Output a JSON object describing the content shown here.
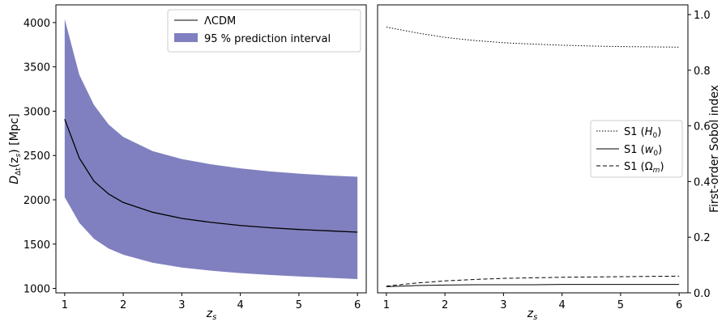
{
  "chart_data": [
    {
      "type": "area",
      "xlabel_main": "z",
      "xlabel_sub": "s",
      "ylabel_pre": "D",
      "ylabel_sub": "Δt",
      "ylabel_paren_pre": "(z",
      "ylabel_paren_sub": "s",
      "ylabel_post": ") [Mpc]",
      "xlim": [
        0.85,
        6.15
      ],
      "ylim": [
        950,
        4200
      ],
      "xticks": [
        "1",
        "2",
        "3",
        "4",
        "5",
        "6"
      ],
      "yticks": [
        "1000",
        "1500",
        "2000",
        "2500",
        "3000",
        "3500",
        "4000"
      ],
      "legend_position": "upper right",
      "legend": [
        {
          "label": "ΛCDM",
          "style": "line"
        },
        {
          "label": "95 % prediction interval",
          "style": "patch"
        }
      ],
      "colors": {
        "band": "#8080c0",
        "line": "#000000"
      },
      "x": [
        1.0,
        1.25,
        1.5,
        1.75,
        2.0,
        2.5,
        3.0,
        3.5,
        4.0,
        4.5,
        5.0,
        5.5,
        6.0
      ],
      "series": [
        {
          "name": "ΛCDM",
          "values": [
            2910,
            2470,
            2210,
            2065,
            1970,
            1860,
            1790,
            1745,
            1710,
            1685,
            1665,
            1650,
            1635
          ]
        },
        {
          "name": "95 % prediction interval upper",
          "values": [
            4040,
            3410,
            3070,
            2850,
            2710,
            2550,
            2460,
            2400,
            2355,
            2320,
            2295,
            2275,
            2260
          ]
        },
        {
          "name": "95 % prediction interval lower",
          "values": [
            2030,
            1740,
            1560,
            1450,
            1380,
            1290,
            1235,
            1200,
            1172,
            1152,
            1135,
            1120,
            1105
          ]
        }
      ]
    },
    {
      "type": "line",
      "xlabel_main": "z",
      "xlabel_sub": "s",
      "ylabel": "First-order Sobol index",
      "xlim": [
        0.85,
        6.15
      ],
      "ylim": [
        0.0,
        1.035
      ],
      "xticks": [
        "1",
        "2",
        "3",
        "4",
        "5",
        "6"
      ],
      "yticks": [
        "0.0",
        "0.2",
        "0.4",
        "0.6",
        "0.8",
        "1.0"
      ],
      "legend_position": "center right",
      "legend": [
        {
          "label_pre": "S1 (",
          "label_sym": "H",
          "label_sub": "0",
          "label_post": ")",
          "dash": "1.5,2"
        },
        {
          "label_pre": "S1 (",
          "label_sym": "w",
          "label_sub": "0",
          "label_post": ")",
          "dash": ""
        },
        {
          "label_pre": "S1 (",
          "label_sym": "Ω",
          "label_sub": "m",
          "label_post": ")",
          "dash": "5,3"
        }
      ],
      "x": [
        1.0,
        1.5,
        2.0,
        2.5,
        3.0,
        3.5,
        4.0,
        4.5,
        5.0,
        5.5,
        6.0
      ],
      "series": [
        {
          "name": "S1 (H0)",
          "values": [
            0.955,
            0.935,
            0.918,
            0.907,
            0.899,
            0.894,
            0.89,
            0.887,
            0.885,
            0.884,
            0.883
          ]
        },
        {
          "name": "S1 (w0)",
          "values": [
            0.022,
            0.026,
            0.028,
            0.029,
            0.029,
            0.029,
            0.03,
            0.03,
            0.03,
            0.03,
            0.03
          ]
        },
        {
          "name": "S1 (Ωm)",
          "values": [
            0.024,
            0.035,
            0.043,
            0.048,
            0.052,
            0.054,
            0.056,
            0.057,
            0.058,
            0.059,
            0.06
          ]
        }
      ]
    }
  ]
}
